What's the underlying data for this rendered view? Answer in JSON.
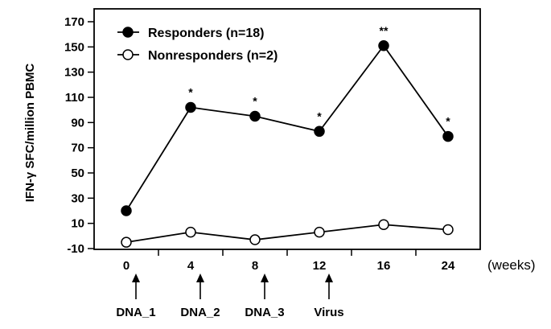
{
  "chart_data": {
    "type": "line",
    "ylabel": "IFN-γ SFC/million PBMC",
    "x_unit_label": "(weeks)",
    "categories": [
      "0",
      "4",
      "8",
      "12",
      "16",
      "24"
    ],
    "ylim": [
      -10,
      170
    ],
    "yticks": [
      "170",
      "150",
      "130",
      "110",
      "90",
      "70",
      "50",
      "30",
      "10",
      "-10"
    ],
    "grid": false,
    "legend_position": "top-left",
    "series": [
      {
        "name": "Responders (n=18)",
        "marker": "filled-circle",
        "color": "#000000",
        "values": [
          20,
          102,
          95,
          83,
          151,
          79
        ],
        "significance": [
          "",
          "*",
          "*",
          "*",
          "**",
          "*"
        ]
      },
      {
        "name": "Nonresponders (n=2)",
        "marker": "open-circle",
        "color": "#000000",
        "values": [
          -5,
          3,
          -3,
          3,
          9,
          5
        ],
        "significance": [
          "",
          "",
          "",
          "",
          "",
          ""
        ]
      }
    ],
    "events": [
      {
        "label": "DNA_1",
        "after": "0"
      },
      {
        "label": "DNA_2",
        "after": "4"
      },
      {
        "label": "DNA_3",
        "after": "8"
      },
      {
        "label": "Virus",
        "after": "12"
      }
    ]
  }
}
